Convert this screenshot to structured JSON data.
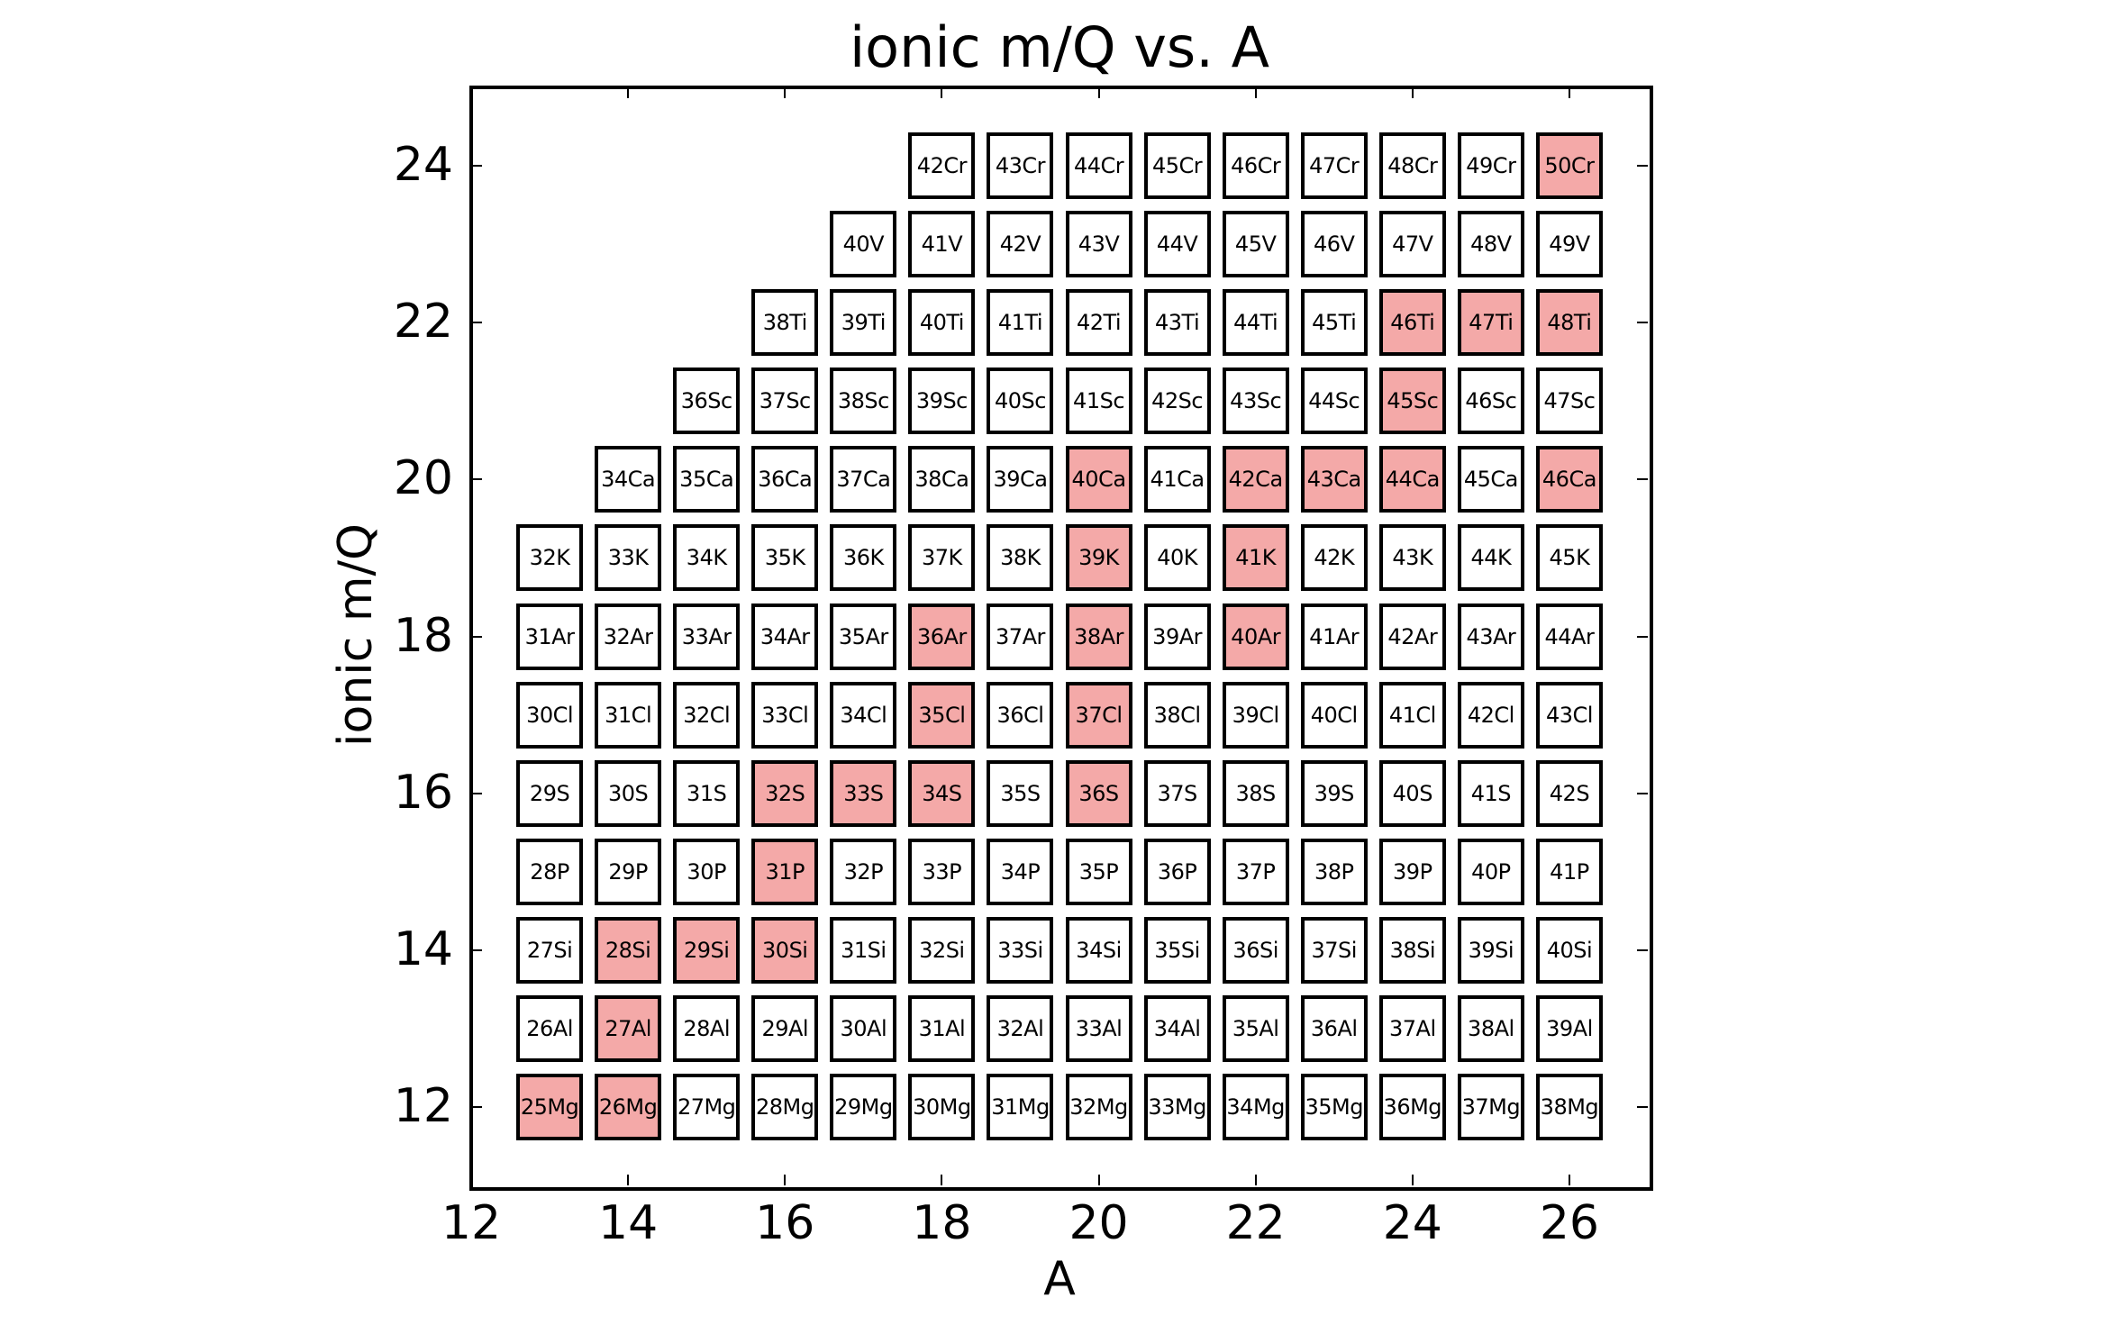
{
  "chart_data": {
    "type": "scatter",
    "title": "ionic m/Q vs. A",
    "xlabel": "A",
    "ylabel": "ionic m/Q",
    "xlim": [
      12,
      27
    ],
    "ylim": [
      11,
      25
    ],
    "xticks": [
      12,
      14,
      16,
      18,
      20,
      22,
      24,
      26
    ],
    "yticks": [
      12,
      14,
      16,
      18,
      20,
      22,
      24
    ],
    "grid": false,
    "legend": null,
    "marker": "labeled square boxes",
    "colors": {
      "stable_fill": "#f4a9a8",
      "default_fill": "#ffffff",
      "edge": "#000000"
    },
    "rows": [
      {
        "y": 12,
        "element": "Mg",
        "x_start": 13,
        "mass_start": 25,
        "mass_end": 38,
        "highlighted": [
          25,
          26
        ]
      },
      {
        "y": 13,
        "element": "Al",
        "x_start": 13,
        "mass_start": 26,
        "mass_end": 39,
        "highlighted": [
          27
        ]
      },
      {
        "y": 14,
        "element": "Si",
        "x_start": 13,
        "mass_start": 27,
        "mass_end": 40,
        "highlighted": [
          28,
          29,
          30
        ]
      },
      {
        "y": 15,
        "element": "P",
        "x_start": 13,
        "mass_start": 28,
        "mass_end": 41,
        "highlighted": [
          31
        ]
      },
      {
        "y": 16,
        "element": "S",
        "x_start": 13,
        "mass_start": 29,
        "mass_end": 42,
        "highlighted": [
          32,
          33,
          34,
          36
        ]
      },
      {
        "y": 17,
        "element": "Cl",
        "x_start": 13,
        "mass_start": 30,
        "mass_end": 43,
        "highlighted": [
          35,
          37
        ]
      },
      {
        "y": 18,
        "element": "Ar",
        "x_start": 13,
        "mass_start": 31,
        "mass_end": 44,
        "highlighted": [
          36,
          38,
          40
        ]
      },
      {
        "y": 19,
        "element": "K",
        "x_start": 13,
        "mass_start": 32,
        "mass_end": 45,
        "highlighted": [
          39,
          41
        ]
      },
      {
        "y": 20,
        "element": "Ca",
        "x_start": 14,
        "mass_start": 34,
        "mass_end": 46,
        "highlighted": [
          40,
          42,
          43,
          44,
          46
        ]
      },
      {
        "y": 21,
        "element": "Sc",
        "x_start": 15,
        "mass_start": 36,
        "mass_end": 47,
        "highlighted": [
          45
        ]
      },
      {
        "y": 22,
        "element": "Ti",
        "x_start": 16,
        "mass_start": 38,
        "mass_end": 48,
        "highlighted": [
          46,
          47,
          48
        ]
      },
      {
        "y": 23,
        "element": "V",
        "x_start": 17,
        "mass_start": 40,
        "mass_end": 49,
        "highlighted": []
      },
      {
        "y": 24,
        "element": "Cr",
        "x_start": 18,
        "mass_start": 42,
        "mass_end": 50,
        "highlighted": [
          50
        ]
      }
    ]
  }
}
